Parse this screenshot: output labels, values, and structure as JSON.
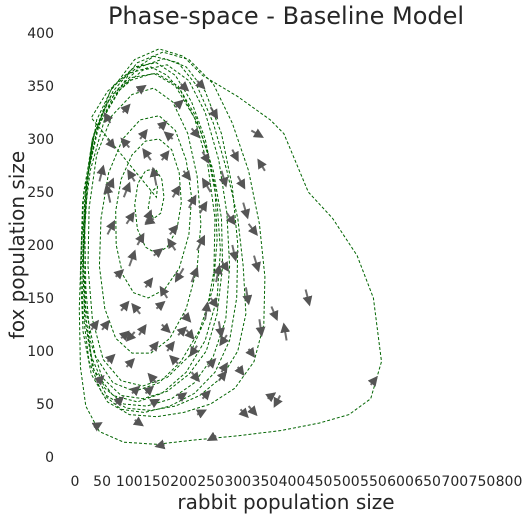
{
  "chart_data": {
    "type": "line",
    "title": "Phase-space - Baseline Model",
    "xlabel": "rabbit population size",
    "ylabel": "fox population size",
    "xlim": [
      0,
      800
    ],
    "ylim": [
      0,
      400
    ],
    "x_ticks": [
      "0",
      "50",
      "100",
      "150",
      "200",
      "250",
      "300",
      "350",
      "400",
      "450",
      "500",
      "550",
      "600",
      "650",
      "700",
      "750",
      "800"
    ],
    "y_ticks": [
      "0",
      "50",
      "100",
      "150",
      "200",
      "250",
      "300",
      "350",
      "400"
    ],
    "grid": false,
    "legend": "none",
    "colors": {
      "trajectory": "#006400",
      "arrows": "#555555",
      "text": "#262626"
    },
    "trajectory": [
      [
        15,
        180
      ],
      [
        22,
        260
      ],
      [
        40,
        318
      ],
      [
        70,
        350
      ],
      [
        110,
        368
      ],
      [
        150,
        372
      ],
      [
        185,
        360
      ],
      [
        215,
        335
      ],
      [
        240,
        300
      ],
      [
        258,
        255
      ],
      [
        262,
        205
      ],
      [
        255,
        160
      ],
      [
        230,
        120
      ],
      [
        195,
        90
      ],
      [
        155,
        70
      ],
      [
        110,
        62
      ],
      [
        70,
        70
      ],
      [
        38,
        95
      ],
      [
        20,
        140
      ],
      [
        16,
        190
      ],
      [
        20,
        250
      ],
      [
        35,
        305
      ],
      [
        65,
        340
      ],
      [
        105,
        358
      ],
      [
        150,
        362
      ],
      [
        190,
        350
      ],
      [
        222,
        322
      ],
      [
        245,
        285
      ],
      [
        262,
        240
      ],
      [
        268,
        195
      ],
      [
        262,
        150
      ],
      [
        240,
        110
      ],
      [
        205,
        80
      ],
      [
        160,
        60
      ],
      [
        115,
        52
      ],
      [
        70,
        58
      ],
      [
        35,
        82
      ],
      [
        18,
        130
      ],
      [
        14,
        185
      ],
      [
        18,
        245
      ],
      [
        32,
        300
      ],
      [
        60,
        335
      ],
      [
        100,
        355
      ],
      [
        145,
        362
      ],
      [
        185,
        350
      ],
      [
        220,
        320
      ],
      [
        245,
        275
      ],
      [
        258,
        225
      ],
      [
        256,
        175
      ],
      [
        240,
        130
      ],
      [
        210,
        95
      ],
      [
        170,
        75
      ],
      [
        125,
        67
      ],
      [
        85,
        72
      ],
      [
        52,
        92
      ],
      [
        32,
        130
      ],
      [
        24,
        180
      ],
      [
        26,
        235
      ],
      [
        40,
        285
      ],
      [
        68,
        322
      ],
      [
        105,
        342
      ],
      [
        145,
        348
      ],
      [
        180,
        335
      ],
      [
        208,
        305
      ],
      [
        225,
        265
      ],
      [
        232,
        220
      ],
      [
        225,
        178
      ],
      [
        205,
        140
      ],
      [
        175,
        112
      ],
      [
        140,
        98
      ],
      [
        105,
        98
      ],
      [
        75,
        112
      ],
      [
        55,
        140
      ],
      [
        45,
        180
      ],
      [
        48,
        225
      ],
      [
        62,
        268
      ],
      [
        88,
        300
      ],
      [
        120,
        318
      ],
      [
        155,
        322
      ],
      [
        185,
        308
      ],
      [
        205,
        280
      ],
      [
        215,
        245
      ],
      [
        210,
        210
      ],
      [
        192,
        178
      ],
      [
        165,
        158
      ],
      [
        135,
        150
      ],
      [
        108,
        155
      ],
      [
        88,
        172
      ],
      [
        76,
        200
      ],
      [
        75,
        232
      ],
      [
        85,
        262
      ],
      [
        105,
        285
      ],
      [
        130,
        298
      ],
      [
        155,
        300
      ],
      [
        178,
        290
      ],
      [
        192,
        268
      ],
      [
        196,
        240
      ],
      [
        188,
        215
      ],
      [
        170,
        198
      ],
      [
        150,
        192
      ],
      [
        130,
        198
      ],
      [
        115,
        215
      ],
      [
        110,
        238
      ],
      [
        116,
        258
      ],
      [
        130,
        270
      ],
      [
        148,
        272
      ],
      [
        160,
        262
      ],
      [
        164,
        245
      ],
      [
        158,
        230
      ],
      [
        145,
        225
      ],
      [
        135,
        235
      ],
      [
        140,
        250
      ],
      [
        152,
        255
      ],
      [
        150,
        245
      ],
      [
        30,
        320
      ],
      [
        60,
        345
      ],
      [
        100,
        362
      ],
      [
        140,
        368
      ],
      [
        170,
        360
      ],
      [
        195,
        345
      ],
      [
        230,
        310
      ],
      [
        255,
        270
      ],
      [
        270,
        225
      ],
      [
        272,
        180
      ],
      [
        262,
        135
      ],
      [
        242,
        100
      ],
      [
        210,
        78
      ],
      [
        170,
        62
      ],
      [
        125,
        55
      ],
      [
        85,
        58
      ],
      [
        50,
        75
      ],
      [
        28,
        110
      ],
      [
        20,
        160
      ],
      [
        18,
        215
      ],
      [
        25,
        270
      ],
      [
        45,
        315
      ],
      [
        80,
        345
      ],
      [
        125,
        365
      ],
      [
        170,
        370
      ],
      [
        210,
        355
      ],
      [
        240,
        325
      ],
      [
        265,
        280
      ],
      [
        280,
        230
      ],
      [
        285,
        180
      ],
      [
        278,
        130
      ],
      [
        255,
        95
      ],
      [
        220,
        70
      ],
      [
        178,
        55
      ],
      [
        132,
        48
      ],
      [
        90,
        50
      ],
      [
        55,
        65
      ],
      [
        30,
        95
      ],
      [
        18,
        140
      ],
      [
        15,
        195
      ],
      [
        20,
        255
      ],
      [
        40,
        308
      ],
      [
        75,
        345
      ],
      [
        120,
        368
      ],
      [
        165,
        376
      ],
      [
        205,
        368
      ],
      [
        240,
        345
      ],
      [
        270,
        305
      ],
      [
        290,
        255
      ],
      [
        300,
        200
      ],
      [
        298,
        150
      ],
      [
        285,
        110
      ],
      [
        258,
        80
      ],
      [
        220,
        60
      ],
      [
        175,
        48
      ],
      [
        128,
        42
      ],
      [
        85,
        45
      ],
      [
        50,
        60
      ],
      [
        26,
        90
      ],
      [
        15,
        135
      ],
      [
        12,
        190
      ],
      [
        16,
        250
      ],
      [
        35,
        305
      ],
      [
        70,
        345
      ],
      [
        115,
        372
      ],
      [
        162,
        382
      ],
      [
        210,
        375
      ],
      [
        255,
        352
      ],
      [
        290,
        315
      ],
      [
        320,
        270
      ],
      [
        340,
        220
      ],
      [
        350,
        170
      ],
      [
        348,
        125
      ],
      [
        330,
        90
      ],
      [
        295,
        65
      ],
      [
        250,
        50
      ],
      [
        200,
        42
      ],
      [
        150,
        38
      ],
      [
        100,
        40
      ],
      [
        60,
        52
      ],
      [
        30,
        78
      ],
      [
        15,
        118
      ],
      [
        10,
        175
      ],
      [
        14,
        240
      ],
      [
        32,
        300
      ],
      [
        65,
        345
      ],
      [
        110,
        375
      ],
      [
        155,
        385
      ],
      [
        200,
        378
      ],
      [
        235,
        360
      ],
      [
        300,
        340
      ],
      [
        360,
        318
      ],
      [
        385,
        305
      ],
      [
        430,
        250
      ],
      [
        475,
        225
      ],
      [
        520,
        190
      ],
      [
        550,
        150
      ],
      [
        565,
        90
      ],
      [
        545,
        55
      ],
      [
        505,
        40
      ],
      [
        450,
        32
      ],
      [
        380,
        25
      ],
      [
        300,
        20
      ],
      [
        220,
        16
      ],
      [
        150,
        12
      ],
      [
        90,
        14
      ],
      [
        45,
        24
      ],
      [
        20,
        48
      ],
      [
        10,
        85
      ],
      [
        8,
        140
      ],
      [
        12,
        205
      ],
      [
        28,
        270
      ],
      [
        58,
        325
      ],
      [
        100,
        362
      ],
      [
        145,
        378
      ],
      [
        190,
        372
      ],
      [
        225,
        350
      ],
      [
        255,
        315
      ],
      [
        280,
        270
      ],
      [
        300,
        225
      ],
      [
        310,
        180
      ],
      [
        315,
        135
      ],
      [
        300,
        100
      ],
      [
        270,
        75
      ],
      [
        230,
        58
      ],
      [
        185,
        48
      ],
      [
        140,
        44
      ],
      [
        95,
        46
      ],
      [
        58,
        58
      ],
      [
        32,
        85
      ],
      [
        20,
        125
      ]
    ],
    "arrows": [
      [
        325,
        308,
        345,
        302
      ],
      [
        200,
        178,
        186,
        166
      ],
      [
        250,
        250,
        236,
        262
      ],
      [
        320,
        220,
        335,
        210
      ],
      [
        280,
        230,
        294,
        220
      ],
      [
        150,
        256,
        144,
        272
      ],
      [
        110,
        260,
        98,
        270
      ],
      [
        362,
        142,
        372,
        130
      ],
      [
        425,
        158,
        432,
        144
      ],
      [
        378,
        58,
        368,
        48
      ],
      [
        545,
        68,
        556,
        75
      ],
      [
        225,
        195,
        238,
        208
      ],
      [
        185,
        195,
        172,
        205
      ],
      [
        205,
        120,
        218,
        112
      ],
      [
        170,
        150,
        158,
        160
      ],
      [
        260,
        165,
        266,
        180
      ],
      [
        240,
        130,
        244,
        145
      ],
      [
        270,
        80,
        280,
        88
      ],
      [
        305,
        45,
        318,
        38
      ],
      [
        265,
        72,
        278,
        80
      ],
      [
        320,
        102,
        330,
        95
      ],
      [
        160,
        125,
        174,
        118
      ],
      [
        120,
        135,
        106,
        144
      ],
      [
        225,
        105,
        213,
        96
      ],
      [
        190,
        88,
        176,
        95
      ],
      [
        150,
        70,
        136,
        78
      ],
      [
        110,
        118,
        96,
        110
      ],
      [
        140,
        280,
        126,
        290
      ],
      [
        180,
        300,
        166,
        306
      ],
      [
        145,
        225,
        131,
        220
      ],
      [
        100,
        292,
        86,
        300
      ],
      [
        65,
        315,
        55,
        324
      ],
      [
        235,
        288,
        246,
        278
      ],
      [
        270,
        270,
        278,
        256
      ],
      [
        290,
        200,
        296,
        186
      ],
      [
        100,
        180,
        110,
        194
      ],
      [
        60,
        210,
        72,
        222
      ],
      [
        130,
        60,
        143,
        66
      ],
      [
        95,
        85,
        108,
        92
      ],
      [
        75,
        50,
        88,
        56
      ],
      [
        35,
        28,
        48,
        32
      ],
      [
        165,
        12,
        150,
        10
      ],
      [
        260,
        20,
        246,
        16
      ],
      [
        60,
        300,
        72,
        292
      ],
      [
        115,
        345,
        129,
        350
      ],
      [
        195,
        352,
        208,
        346
      ],
      [
        215,
        310,
        228,
        302
      ],
      [
        250,
        330,
        262,
        320
      ],
      [
        118,
        115,
        130,
        124
      ],
      [
        145,
        190,
        160,
        196
      ],
      [
        265,
        128,
        270,
        114
      ],
      [
        85,
        138,
        98,
        146
      ],
      [
        140,
        100,
        152,
        108
      ],
      [
        190,
        55,
        204,
        60
      ],
      [
        225,
        40,
        240,
        44
      ],
      [
        110,
        35,
        124,
        30
      ],
      [
        280,
        115,
        268,
        106
      ],
      [
        95,
        220,
        108,
        230
      ],
      [
        210,
        235,
        222,
        246
      ],
      [
        180,
        245,
        192,
        255
      ],
      [
        120,
        300,
        132,
        308
      ],
      [
        60,
        250,
        70,
        262
      ],
      [
        75,
        170,
        88,
        176
      ],
      [
        315,
        160,
        320,
        145
      ],
      [
        340,
        130,
        344,
        115
      ],
      [
        200,
        135,
        212,
        128
      ],
      [
        245,
        85,
        258,
        92
      ],
      [
        170,
        100,
        182,
        108
      ],
      [
        85,
        112,
        98,
        118
      ],
      [
        40,
        70,
        52,
        76
      ],
      [
        30,
        120,
        42,
        128
      ],
      [
        320,
        48,
        334,
        40
      ],
      [
        355,
        55,
        368,
        60
      ],
      [
        390,
        110,
        385,
        125
      ],
      [
        300,
        265,
        312,
        254
      ],
      [
        235,
        55,
        248,
        62
      ],
      [
        215,
        165,
        225,
        178
      ],
      [
        175,
        210,
        188,
        218
      ],
      [
        130,
        220,
        140,
        232
      ],
      [
        90,
        245,
        100,
        258
      ],
      [
        155,
        310,
        168,
        316
      ],
      [
        88,
        325,
        100,
        332
      ],
      [
        65,
        240,
        58,
        256
      ],
      [
        200,
        270,
        212,
        262
      ],
      [
        160,
        280,
        172,
        288
      ],
      [
        130,
        160,
        142,
        168
      ],
      [
        300,
        85,
        310,
        78
      ],
      [
        215,
        80,
        228,
        72
      ],
      [
        140,
        50,
        154,
        54
      ],
      [
        60,
        90,
        72,
        96
      ],
      [
        230,
        230,
        242,
        240
      ],
      [
        330,
        190,
        338,
        176
      ],
      [
        250,
        150,
        262,
        142
      ],
      [
        185,
        330,
        198,
        336
      ],
      [
        45,
        260,
        52,
        274
      ],
      [
        115,
        200,
        126,
        210
      ],
      [
        350,
        270,
        338,
        280
      ],
      [
        290,
        290,
        300,
        280
      ],
      [
        225,
        355,
        238,
        348
      ],
      [
        105,
        60,
        118,
        66
      ],
      [
        50,
        120,
        62,
        128
      ],
      [
        150,
        140,
        164,
        146
      ],
      [
        270,
        185,
        282,
        176
      ],
      [
        310,
        240,
        318,
        226
      ],
      [
        190,
        115,
        204,
        122
      ]
    ]
  }
}
